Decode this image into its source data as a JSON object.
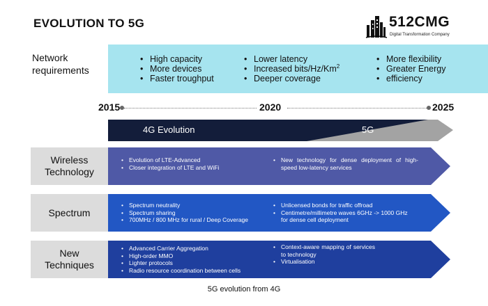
{
  "title": "EVOLUTION TO 5G",
  "logo": {
    "brand": "512CMG",
    "tagline": "Digital Transformation Company",
    "icon": "city-skyline-icon"
  },
  "network_requirements": {
    "label_lines": [
      "Network",
      "requirements"
    ],
    "col1": [
      "High capacity",
      "More devices",
      "Faster troughput"
    ],
    "col2_a": "Lower latency",
    "col2_b": "Increased bits/Hz/Km",
    "col2_b_sup": "2",
    "col2_c": "Deeper coverage",
    "col3": [
      "More flexibility",
      "Greater Energy",
      "efficiency"
    ]
  },
  "timeline": {
    "start": "2015",
    "mid": "2020",
    "end": "2025"
  },
  "evolution": {
    "label_4g": "4G Evolution",
    "label_5g": "5G"
  },
  "rows": [
    {
      "label_lines": [
        "Wireless",
        "Technology"
      ],
      "left": [
        "Evolution of LTE-Advanced",
        "Closer integration of LTE and WiFi"
      ],
      "right": [
        "New technology for dense deployment of high-speed low-latency services"
      ]
    },
    {
      "label_lines": [
        "Spectrum"
      ],
      "left": [
        "Spectrum neutrality",
        "Spectrum sharing",
        "700MHz / 800 MHz for rural / Deep Coverage"
      ],
      "right": [
        "Unlicensed bonds for traffic offroad",
        "Centimetre/millimetre waves 6GHz -> 1000 GHz for dense cell deployment"
      ]
    },
    {
      "label_lines": [
        "New",
        "Techniques"
      ],
      "left": [
        "Advanced Carrier Aggregation",
        "High-order MMO",
        "Lighter protocols",
        "Radio resource coordination between cells"
      ],
      "right": [
        "Context-aware mapping of services to technology",
        "Virtualisation"
      ]
    }
  ],
  "colors": {
    "band": "#a6e4ef",
    "row1": "#4f59a6",
    "row2": "#2257c4",
    "row3": "#1f3f9e",
    "dark_arrow": "#131d3a",
    "grey_arrow": "#a3a3a3",
    "label_bg": "#dcdcdc"
  },
  "caption": "5G evolution from 4G"
}
